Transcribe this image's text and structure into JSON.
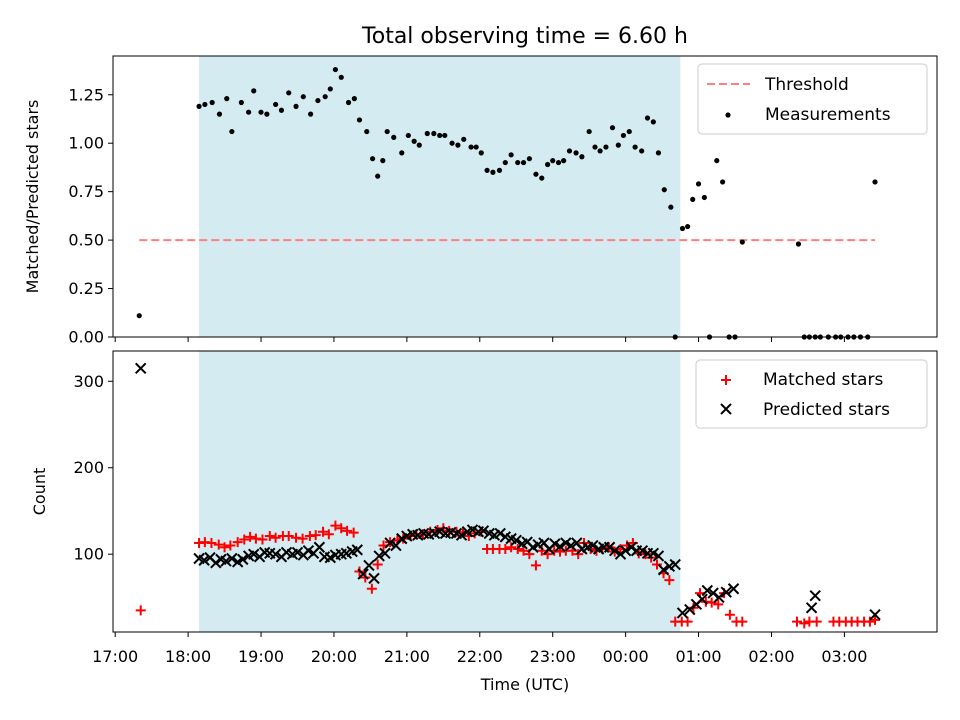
{
  "figure": {
    "title": "Total observing time = 6.60 h"
  },
  "chart_data": [
    {
      "type": "scatter",
      "panel": "ratio",
      "ylabel": "Matched/Predicted stars",
      "ylim": [
        0,
        1.45
      ],
      "yticks": [
        0,
        0.25,
        0.5,
        0.75,
        1.0,
        1.25
      ],
      "ytick_labels": [
        "0.00",
        "0.25",
        "0.50",
        "0.75",
        "1.00",
        "1.25"
      ],
      "legend_position": "top-right",
      "threshold": {
        "name": "Threshold",
        "value": 0.5,
        "x_range": [
          17.33,
          27.42
        ],
        "color": "#ff7f7f",
        "style": "dashed"
      },
      "series": [
        {
          "name": "Measurements",
          "color": "#000000",
          "marker": "dot",
          "x": [
            17.33,
            18.15,
            18.23,
            18.33,
            18.43,
            18.53,
            18.6,
            18.73,
            18.83,
            18.9,
            19.0,
            19.08,
            19.2,
            19.28,
            19.38,
            19.48,
            19.58,
            19.68,
            19.78,
            19.88,
            19.95,
            20.02,
            20.1,
            20.2,
            20.28,
            20.35,
            20.45,
            20.53,
            20.6,
            20.67,
            20.73,
            20.82,
            20.93,
            21.02,
            21.1,
            21.17,
            21.28,
            21.37,
            21.45,
            21.52,
            21.62,
            21.7,
            21.78,
            21.88,
            21.95,
            22.02,
            22.1,
            22.18,
            22.27,
            22.35,
            22.43,
            22.52,
            22.6,
            22.68,
            22.77,
            22.85,
            22.93,
            23.0,
            23.08,
            23.15,
            23.23,
            23.32,
            23.4,
            23.5,
            23.58,
            23.65,
            23.73,
            23.82,
            23.9,
            23.97,
            24.05,
            24.13,
            24.22,
            24.3,
            24.38,
            24.45,
            24.53,
            24.62,
            24.68,
            24.78,
            24.85,
            24.92,
            25.0,
            25.08,
            25.15,
            25.25,
            25.33,
            25.42,
            25.5,
            25.6,
            26.37,
            26.45,
            26.52,
            26.6,
            26.67,
            26.78,
            26.88,
            26.95,
            27.05,
            27.13,
            27.22,
            27.32,
            27.42
          ],
          "y": [
            0.11,
            1.19,
            1.2,
            1.21,
            1.15,
            1.23,
            1.06,
            1.21,
            1.16,
            1.27,
            1.16,
            1.15,
            1.2,
            1.17,
            1.26,
            1.19,
            1.24,
            1.15,
            1.22,
            1.24,
            1.28,
            1.38,
            1.34,
            1.21,
            1.23,
            1.12,
            1.06,
            0.92,
            0.83,
            0.91,
            1.06,
            1.03,
            0.95,
            1.04,
            1.01,
            0.99,
            1.05,
            1.05,
            1.04,
            1.04,
            1.0,
            0.99,
            1.02,
            0.98,
            0.98,
            0.95,
            0.86,
            0.85,
            0.86,
            0.9,
            0.94,
            0.9,
            0.9,
            0.92,
            0.84,
            0.82,
            0.89,
            0.91,
            0.9,
            0.91,
            0.96,
            0.95,
            0.93,
            1.06,
            0.98,
            0.96,
            0.98,
            1.08,
            0.99,
            1.04,
            1.06,
            0.98,
            0.96,
            1.13,
            1.11,
            0.95,
            0.76,
            0.67,
            0.0,
            0.56,
            0.57,
            0.71,
            0.79,
            0.72,
            0.0,
            0.91,
            0.8,
            0.0,
            0.0,
            0.49,
            0.48,
            0.0,
            0.0,
            0.0,
            0.0,
            0.0,
            0.0,
            0.0,
            0.0,
            0.0,
            0.0,
            0.0,
            0.8
          ]
        }
      ]
    },
    {
      "type": "scatter",
      "panel": "counts",
      "xlabel": "Time (UTC)",
      "ylabel": "Count",
      "xlim": [
        16.97,
        28.27
      ],
      "ylim": [
        10,
        335
      ],
      "yticks": [
        100,
        200,
        300
      ],
      "ytick_labels": [
        "100",
        "200",
        "300"
      ],
      "xticks": [
        17,
        18,
        19,
        20,
        21,
        22,
        23,
        24,
        25,
        26,
        27
      ],
      "xtick_labels": [
        "17:00",
        "18:00",
        "19:00",
        "20:00",
        "21:00",
        "22:00",
        "23:00",
        "00:00",
        "01:00",
        "02:00",
        "03:00"
      ],
      "legend_position": "top-right",
      "observing_window": {
        "start": 18.15,
        "end": 24.75,
        "color": "#d3ebf1"
      },
      "series": [
        {
          "name": "Matched stars",
          "color": "#ff0000",
          "marker": "plus",
          "x": [
            17.35,
            18.15,
            18.23,
            18.32,
            18.42,
            18.5,
            18.58,
            18.68,
            18.77,
            18.85,
            18.93,
            19.02,
            19.12,
            19.2,
            19.3,
            19.38,
            19.48,
            19.57,
            19.67,
            19.75,
            19.85,
            19.93,
            20.02,
            20.1,
            20.18,
            20.27,
            20.35,
            20.43,
            20.52,
            20.6,
            20.68,
            20.77,
            20.87,
            20.95,
            21.05,
            21.13,
            21.22,
            21.32,
            21.42,
            21.5,
            21.58,
            21.68,
            21.77,
            21.85,
            21.93,
            22.02,
            22.1,
            22.18,
            22.27,
            22.35,
            22.43,
            22.52,
            22.6,
            22.68,
            22.77,
            22.85,
            22.93,
            23.02,
            23.1,
            23.18,
            23.27,
            23.35,
            23.43,
            23.52,
            23.6,
            23.68,
            23.77,
            23.85,
            23.93,
            24.02,
            24.1,
            24.18,
            24.27,
            24.35,
            24.43,
            24.52,
            24.6,
            24.68,
            24.77,
            24.85,
            24.93,
            25.02,
            25.1,
            25.18,
            25.27,
            25.35,
            25.43,
            25.52,
            25.6,
            26.35,
            26.45,
            26.52,
            26.62,
            26.85,
            26.93,
            27.02,
            27.1,
            27.18,
            27.27,
            27.35,
            27.42
          ],
          "y": [
            35,
            113,
            114,
            113,
            111,
            108,
            110,
            114,
            117,
            120,
            118,
            117,
            121,
            119,
            121,
            121,
            119,
            118,
            121,
            122,
            126,
            123,
            133,
            130,
            127,
            125,
            80,
            73,
            60,
            88,
            110,
            114,
            116,
            118,
            121,
            123,
            123,
            126,
            128,
            130,
            127,
            126,
            125,
            121,
            124,
            126,
            106,
            106,
            106,
            106,
            108,
            106,
            104,
            100,
            87,
            104,
            100,
            104,
            103,
            104,
            104,
            100,
            113,
            106,
            104,
            106,
            108,
            103,
            106,
            110,
            113,
            101,
            100,
            96,
            88,
            78,
            70,
            22,
            22,
            22,
            38,
            55,
            45,
            44,
            42,
            55,
            30,
            22,
            22,
            22,
            20,
            22,
            22,
            22,
            22,
            22,
            22,
            22,
            22,
            22,
            24
          ]
        },
        {
          "name": "Predicted stars",
          "color": "#000000",
          "marker": "x",
          "x": [
            17.35,
            18.15,
            18.22,
            18.3,
            18.38,
            18.45,
            18.52,
            18.6,
            18.68,
            18.75,
            18.83,
            18.9,
            18.98,
            19.05,
            19.12,
            19.2,
            19.28,
            19.35,
            19.43,
            19.5,
            19.58,
            19.65,
            19.72,
            19.8,
            19.87,
            19.95,
            20.02,
            20.1,
            20.17,
            20.25,
            20.32,
            20.4,
            20.48,
            20.55,
            20.62,
            20.7,
            20.77,
            20.85,
            20.93,
            21.0,
            21.08,
            21.15,
            21.23,
            21.3,
            21.38,
            21.45,
            21.53,
            21.6,
            21.68,
            21.75,
            21.83,
            21.9,
            21.98,
            22.05,
            22.13,
            22.2,
            22.28,
            22.35,
            22.43,
            22.5,
            22.58,
            22.65,
            22.73,
            22.8,
            22.88,
            22.95,
            23.03,
            23.1,
            23.18,
            23.25,
            23.33,
            23.4,
            23.48,
            23.55,
            23.63,
            23.7,
            23.78,
            23.85,
            23.93,
            24.0,
            24.08,
            24.15,
            24.23,
            24.3,
            24.38,
            24.45,
            24.52,
            24.6,
            24.68,
            24.78,
            24.88,
            24.97,
            25.05,
            25.12,
            25.2,
            25.28,
            25.38,
            25.48,
            26.55,
            26.6,
            27.42
          ],
          "y": [
            315,
            95,
            93,
            96,
            90,
            94,
            92,
            95,
            91,
            94,
            98,
            100,
            97,
            102,
            101,
            100,
            97,
            102,
            100,
            102,
            99,
            104,
            101,
            108,
            97,
            96,
            99,
            100,
            101,
            103,
            105,
            77,
            87,
            72,
            98,
            101,
            113,
            110,
            118,
            121,
            123,
            122,
            124,
            123,
            124,
            126,
            124,
            125,
            124,
            122,
            126,
            128,
            126,
            127,
            124,
            122,
            124,
            120,
            118,
            116,
            112,
            114,
            108,
            111,
            113,
            106,
            112,
            109,
            113,
            110,
            113,
            106,
            108,
            110,
            106,
            108,
            108,
            104,
            100,
            104,
            108,
            104,
            104,
            101,
            101,
            98,
            82,
            86,
            88,
            32,
            36,
            42,
            48,
            58,
            55,
            50,
            56,
            60,
            38,
            52,
            30
          ]
        }
      ]
    }
  ]
}
